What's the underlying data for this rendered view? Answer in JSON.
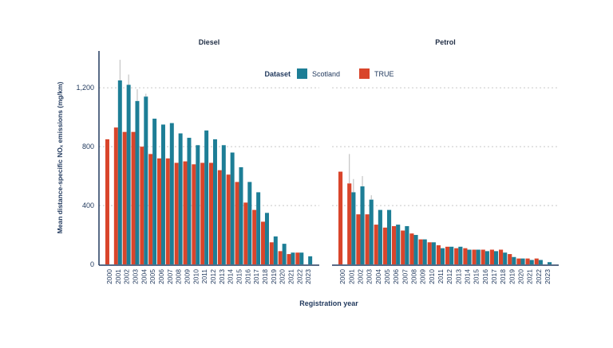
{
  "chart_data": {
    "type": "bar",
    "ylabel": "Mean distance-specific NOₓ emissions (mg/km)",
    "xlabel": "Registration year",
    "ylim": [
      0,
      1450
    ],
    "yticks": [
      0,
      400,
      800,
      1200
    ],
    "ytick_labels": [
      "0",
      "400",
      "800",
      "1,200"
    ],
    "grid": "horizontal dotted",
    "legend": {
      "title": "Dataset",
      "placement": "top-center",
      "entries": [
        "Scotland",
        "TRUE"
      ]
    },
    "colors": {
      "Scotland": "#1d7e96",
      "TRUE": "#d9452b",
      "axis": "#223a5e",
      "grid": "#c8c8c8",
      "text": "#223a5e"
    },
    "categories": [
      "2000",
      "2001",
      "2002",
      "2003",
      "2004",
      "2005",
      "2006",
      "2007",
      "2008",
      "2009",
      "2010",
      "2011",
      "2012",
      "2013",
      "2014",
      "2015",
      "2016",
      "2017",
      "2018",
      "2019",
      "2020",
      "2021",
      "2022",
      "2023"
    ],
    "panels": [
      {
        "title": "Diesel",
        "series": [
          {
            "name": "Scotland",
            "values": [
              null,
              1250,
              1220,
              1110,
              1140,
              990,
              950,
              960,
              890,
              860,
              810,
              910,
              850,
              810,
              760,
              660,
              560,
              490,
              350,
              190,
              140,
              80,
              80,
              55
            ],
            "error_top": [
              null,
              1390,
              1290,
              1190,
              1160,
              null,
              null,
              null,
              null,
              null,
              null,
              null,
              null,
              null,
              null,
              null,
              null,
              null,
              null,
              null,
              null,
              null,
              null,
              null
            ]
          },
          {
            "name": "TRUE",
            "values": [
              850,
              930,
              900,
              900,
              800,
              750,
              720,
              720,
              690,
              700,
              680,
              690,
              690,
              640,
              610,
              560,
              420,
              370,
              290,
              150,
              90,
              70,
              80,
              null
            ]
          }
        ]
      },
      {
        "title": "Petrol",
        "series": [
          {
            "name": "Scotland",
            "values": [
              null,
              490,
              530,
              440,
              370,
              370,
              270,
              260,
              200,
              170,
              150,
              110,
              120,
              120,
              100,
              100,
              90,
              90,
              80,
              50,
              40,
              30,
              30,
              15
            ],
            "error_top": [
              null,
              580,
              600,
              470,
              null,
              null,
              null,
              null,
              null,
              null,
              null,
              null,
              null,
              null,
              null,
              null,
              null,
              null,
              null,
              null,
              null,
              null,
              null,
              null
            ]
          },
          {
            "name": "TRUE",
            "values": [
              630,
              550,
              340,
              340,
              270,
              250,
              260,
              230,
              210,
              170,
              150,
              130,
              120,
              110,
              110,
              100,
              100,
              100,
              100,
              70,
              40,
              40,
              40,
              null
            ],
            "error_top": [
              null,
              750,
              null,
              null,
              null,
              null,
              null,
              null,
              null,
              null,
              null,
              null,
              null,
              null,
              null,
              null,
              null,
              null,
              null,
              null,
              null,
              null,
              null,
              null
            ]
          }
        ]
      }
    ]
  }
}
